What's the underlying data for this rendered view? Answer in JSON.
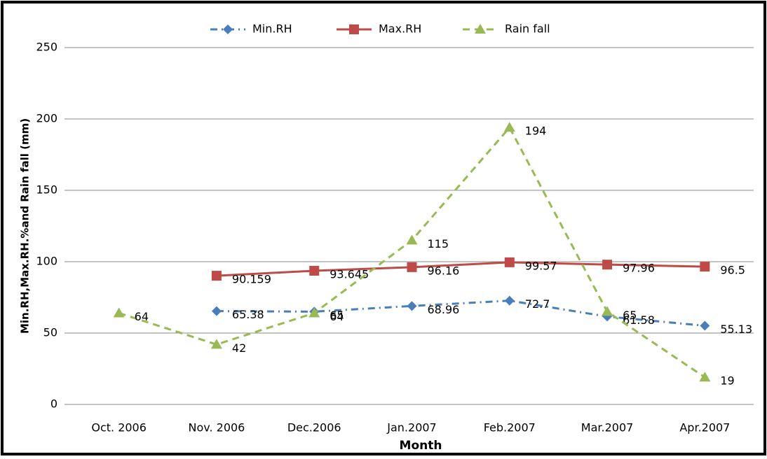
{
  "chart_data": {
    "type": "line",
    "x_label": "Month",
    "y_label": "Min.RH,Max.RH.%and Rain fall (mm)",
    "categories": [
      "Oct. 2006",
      "Nov. 2006",
      "Dec.2006",
      "Jan.2007",
      "Feb.2007",
      "Mar.2007",
      "Apr.2007"
    ],
    "series": [
      {
        "name": "Min.RH",
        "color": "#4a7ebb",
        "marker": "diamond",
        "dash": "dashdot",
        "values": [
          null,
          65.38,
          65,
          68.96,
          72.7,
          61.58,
          55.13
        ]
      },
      {
        "name": "Max.RH",
        "color": "#be4b48",
        "marker": "square",
        "dash": "solid",
        "values": [
          null,
          90.159,
          93.645,
          96.16,
          99.57,
          97.96,
          96.5
        ]
      },
      {
        "name": "Rain fall",
        "color": "#98b954",
        "marker": "triangle",
        "dash": "dashed",
        "values": [
          64,
          42,
          64,
          115,
          194,
          65,
          19
        ]
      }
    ],
    "ylim": [
      0,
      250
    ],
    "yticks": [
      0,
      50,
      100,
      150,
      200,
      250
    ],
    "grid": true,
    "legend": "top"
  }
}
